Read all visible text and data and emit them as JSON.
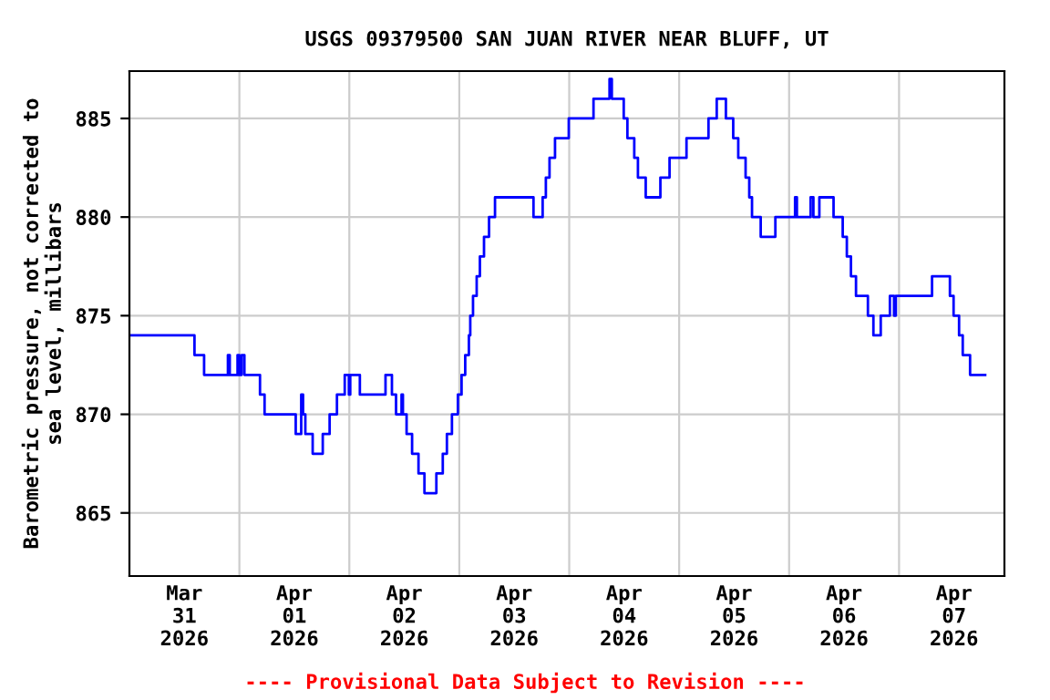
{
  "chart_data": {
    "type": "step",
    "title": "USGS 09379500 SAN JUAN RIVER NEAR BLUFF, UT",
    "ylabel": "Barometric pressure, not corrected to\nsea level, millibars",
    "annotations": [
      "---- Provisional Data Subject to Revision ----"
    ],
    "x": [
      "2026-03-31T00:00",
      "2026-03-31T14:12",
      "2026-03-31T16:18",
      "2026-03-31T21:30",
      "2026-03-31T21:54",
      "2026-03-31T23:36",
      "2026-04-01T00:00",
      "2026-04-01T00:30",
      "2026-04-01T01:06",
      "2026-04-01T04:30",
      "2026-04-01T05:30",
      "2026-04-01T12:18",
      "2026-04-01T13:30",
      "2026-04-01T13:54",
      "2026-04-01T14:24",
      "2026-04-01T16:00",
      "2026-04-01T18:12",
      "2026-04-01T19:42",
      "2026-04-01T21:18",
      "2026-04-01T23:00",
      "2026-04-01T23:54",
      "2026-04-02T00:12",
      "2026-04-02T02:18",
      "2026-04-02T07:54",
      "2026-04-02T09:18",
      "2026-04-02T10:12",
      "2026-04-02T11:24",
      "2026-04-02T11:42",
      "2026-04-02T12:30",
      "2026-04-02T13:42",
      "2026-04-02T15:06",
      "2026-04-02T16:24",
      "2026-04-02T19:00",
      "2026-04-02T20:24",
      "2026-04-02T21:18",
      "2026-04-02T22:24",
      "2026-04-02T23:42",
      "2026-04-03T00:30",
      "2026-04-03T01:18",
      "2026-04-03T02:06",
      "2026-04-03T02:24",
      "2026-04-03T03:00",
      "2026-04-03T03:48",
      "2026-04-03T04:30",
      "2026-04-03T05:24",
      "2026-04-03T06:30",
      "2026-04-03T07:48",
      "2026-04-03T16:12",
      "2026-04-03T18:12",
      "2026-04-03T18:54",
      "2026-04-03T19:42",
      "2026-04-03T20:54",
      "2026-04-03T23:54",
      "2026-04-04T05:18",
      "2026-04-04T08:48",
      "2026-04-04T09:18",
      "2026-04-04T11:54",
      "2026-04-04T12:42",
      "2026-04-04T14:12",
      "2026-04-04T15:00",
      "2026-04-04T16:42",
      "2026-04-04T19:54",
      "2026-04-04T21:54",
      "2026-04-05T01:36",
      "2026-04-05T06:24",
      "2026-04-05T08:12",
      "2026-04-05T10:12",
      "2026-04-05T11:48",
      "2026-04-05T12:54",
      "2026-04-05T14:30",
      "2026-04-05T15:18",
      "2026-04-05T15:54",
      "2026-04-05T17:48",
      "2026-04-05T21:00",
      "2026-04-06T01:18",
      "2026-04-06T01:42",
      "2026-04-06T04:42",
      "2026-04-06T05:18",
      "2026-04-06T06:36",
      "2026-04-06T09:42",
      "2026-04-06T11:42",
      "2026-04-06T12:36",
      "2026-04-06T13:30",
      "2026-04-06T14:36",
      "2026-04-06T17:12",
      "2026-04-06T18:24",
      "2026-04-06T20:00",
      "2026-04-06T22:00",
      "2026-04-06T22:54",
      "2026-04-06T23:18",
      "2026-04-07T07:12",
      "2026-04-07T11:06",
      "2026-04-07T11:54",
      "2026-04-07T13:06",
      "2026-04-07T13:54",
      "2026-04-07T15:30",
      "2026-04-07T18:48"
    ],
    "series": [
      {
        "color": "#0000ff",
        "values": [
          874,
          873,
          872,
          873,
          872,
          873,
          872,
          873,
          872,
          871,
          870,
          869,
          871,
          870,
          869,
          868,
          869,
          870,
          871,
          872,
          871,
          872,
          871,
          872,
          871,
          870,
          871,
          870,
          869,
          868,
          867,
          866,
          867,
          868,
          869,
          870,
          871,
          872,
          873,
          874,
          875,
          876,
          877,
          878,
          879,
          880,
          881,
          880,
          881,
          882,
          883,
          884,
          885,
          886,
          887,
          886,
          885,
          884,
          883,
          882,
          881,
          882,
          883,
          884,
          885,
          886,
          885,
          884,
          883,
          882,
          881,
          880,
          879,
          880,
          881,
          880,
          881,
          880,
          881,
          880,
          879,
          878,
          877,
          876,
          875,
          874,
          875,
          876,
          875,
          876,
          877,
          876,
          875,
          874,
          873,
          872,
          872
        ]
      }
    ],
    "xlim": [
      "2026-03-31T00:00",
      "2026-04-07T23:00"
    ],
    "xticks": [
      {
        "value": "2026-03-31T12:00",
        "label": "Mar\n31\n2026"
      },
      {
        "value": "2026-04-01T00:00",
        "label": null
      },
      {
        "value": "2026-04-01T12:00",
        "label": "Apr\n01\n2026"
      },
      {
        "value": "2026-04-02T00:00",
        "label": null
      },
      {
        "value": "2026-04-02T12:00",
        "label": "Apr\n02\n2026"
      },
      {
        "value": "2026-04-03T00:00",
        "label": null
      },
      {
        "value": "2026-04-03T12:00",
        "label": "Apr\n03\n2026"
      },
      {
        "value": "2026-04-04T00:00",
        "label": null
      },
      {
        "value": "2026-04-04T12:00",
        "label": "Apr\n04\n2026"
      },
      {
        "value": "2026-04-05T00:00",
        "label": null
      },
      {
        "value": "2026-04-05T12:00",
        "label": "Apr\n05\n2026"
      },
      {
        "value": "2026-04-06T00:00",
        "label": null
      },
      {
        "value": "2026-04-06T12:00",
        "label": "Apr\n06\n2026"
      },
      {
        "value": "2026-04-07T00:00",
        "label": null
      },
      {
        "value": "2026-04-07T12:00",
        "label": "Apr\n07\n2026"
      }
    ],
    "ylim": [
      861.8,
      887.4
    ],
    "yticks": [
      865,
      870,
      875,
      880,
      885
    ],
    "grid": true
  }
}
